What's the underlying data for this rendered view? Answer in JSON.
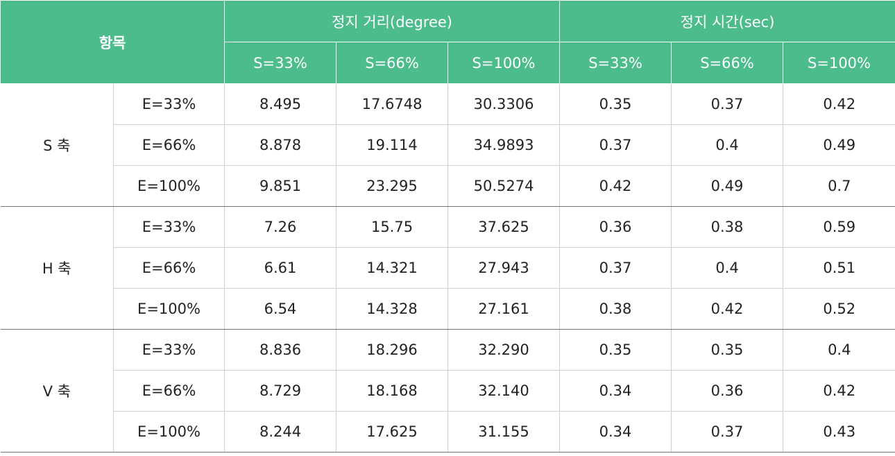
{
  "header": {
    "item_label": "항목",
    "group_distance": "정지  거리(degree)",
    "group_time": "정지  시간(sec)",
    "sub_headers": [
      "S=33%",
      "S=66%",
      "S=100%",
      "S=33%",
      "S=66%",
      "S=100%"
    ]
  },
  "groups": [
    {
      "axis": "S 축",
      "rows": [
        {
          "e": "E=33%",
          "v": [
            "8.495",
            "17.6748",
            "30.3306",
            "0.35",
            "0.37",
            "0.42"
          ]
        },
        {
          "e": "E=66%",
          "v": [
            "8.878",
            "19.114",
            "34.9893",
            "0.37",
            "0.4",
            "0.49"
          ]
        },
        {
          "e": "E=100%",
          "v": [
            "9.851",
            "23.295",
            "50.5274",
            "0.42",
            "0.49",
            "0.7"
          ]
        }
      ]
    },
    {
      "axis": "H 축",
      "rows": [
        {
          "e": "E=33%",
          "v": [
            "7.26",
            "15.75",
            "37.625",
            "0.36",
            "0.38",
            "0.59"
          ]
        },
        {
          "e": "E=66%",
          "v": [
            "6.61",
            "14.321",
            "27.943",
            "0.37",
            "0.4",
            "0.51"
          ]
        },
        {
          "e": "E=100%",
          "v": [
            "6.54",
            "14.328",
            "27.161",
            "0.38",
            "0.42",
            "0.52"
          ]
        }
      ]
    },
    {
      "axis": "V 축",
      "rows": [
        {
          "e": "E=33%",
          "v": [
            "8.836",
            "18.296",
            "32.290",
            "0.35",
            "0.35",
            "0.4"
          ]
        },
        {
          "e": "E=66%",
          "v": [
            "8.729",
            "18.168",
            "32.140",
            "0.34",
            "0.36",
            "0.42"
          ]
        },
        {
          "e": "E=100%",
          "v": [
            "8.244",
            "17.625",
            "31.155",
            "0.34",
            "0.37",
            "0.43"
          ]
        }
      ]
    }
  ]
}
